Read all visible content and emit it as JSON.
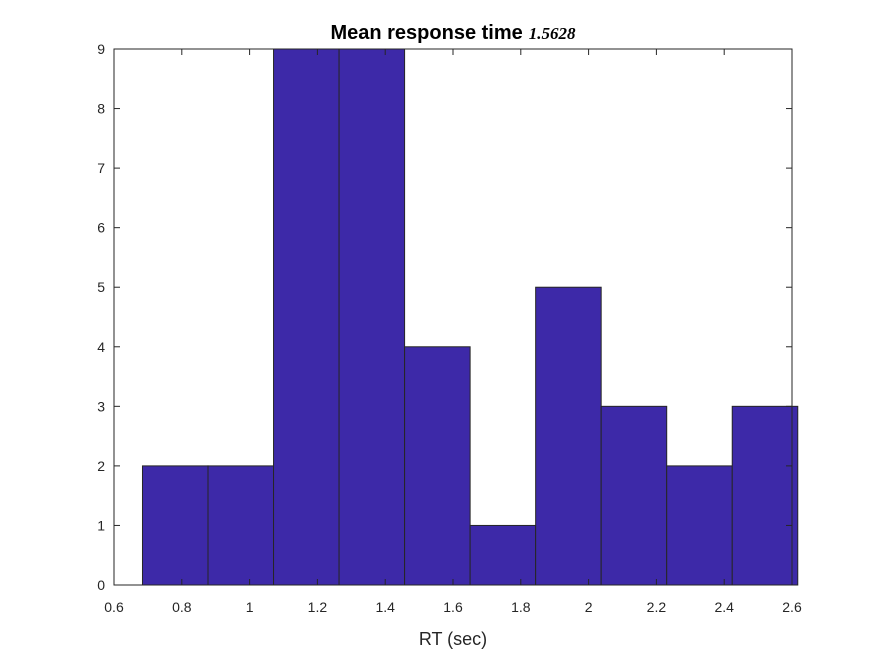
{
  "chart_data": {
    "type": "bar",
    "title": "Mean response time",
    "title_value": "1.5628",
    "xlabel": "RT (sec)",
    "ylabel": "",
    "xlim": [
      0.6,
      2.6
    ],
    "ylim": [
      0,
      9
    ],
    "x_ticks": [
      "0.6",
      "0.8",
      "1",
      "1.2",
      "1.4",
      "1.6",
      "1.8",
      "2",
      "2.2",
      "2.4",
      "2.6"
    ],
    "y_ticks": [
      "0",
      "1",
      "2",
      "3",
      "4",
      "5",
      "6",
      "7",
      "8",
      "9"
    ],
    "bin_edges": [
      0.684,
      0.8773,
      1.0706,
      1.2639,
      1.4572,
      1.6505,
      1.8438,
      2.0371,
      2.2304,
      2.4237,
      2.617
    ],
    "values": [
      2,
      2,
      9,
      9,
      4,
      1,
      5,
      3,
      2,
      3
    ],
    "grid": false,
    "bar_color": "#3d29a8",
    "edge_color": "#262626"
  }
}
